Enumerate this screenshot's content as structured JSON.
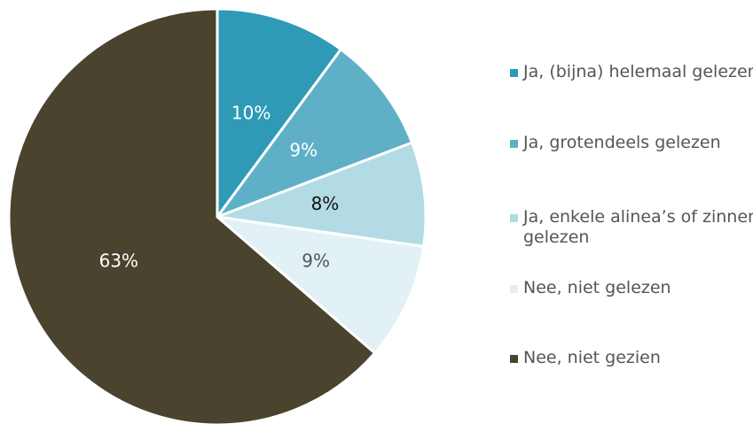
{
  "chart_data": {
    "type": "pie",
    "categories": [
      "Ja, (bijna) helemaal gelezen",
      "Ja, grotendeels gelezen",
      "Ja, enkele alinea’s of zinnen gelezen",
      "Nee, niet gelezen",
      "Nee, niet gezien"
    ],
    "values": [
      10,
      9,
      8,
      9,
      63
    ],
    "value_labels": [
      "10%",
      "9%",
      "8%",
      "9%",
      "63%"
    ],
    "colors": [
      "#2e9ab5",
      "#5fb0c7",
      "#b3dbe5",
      "#e2f1f5",
      "#4a432e"
    ],
    "legend": "right"
  }
}
